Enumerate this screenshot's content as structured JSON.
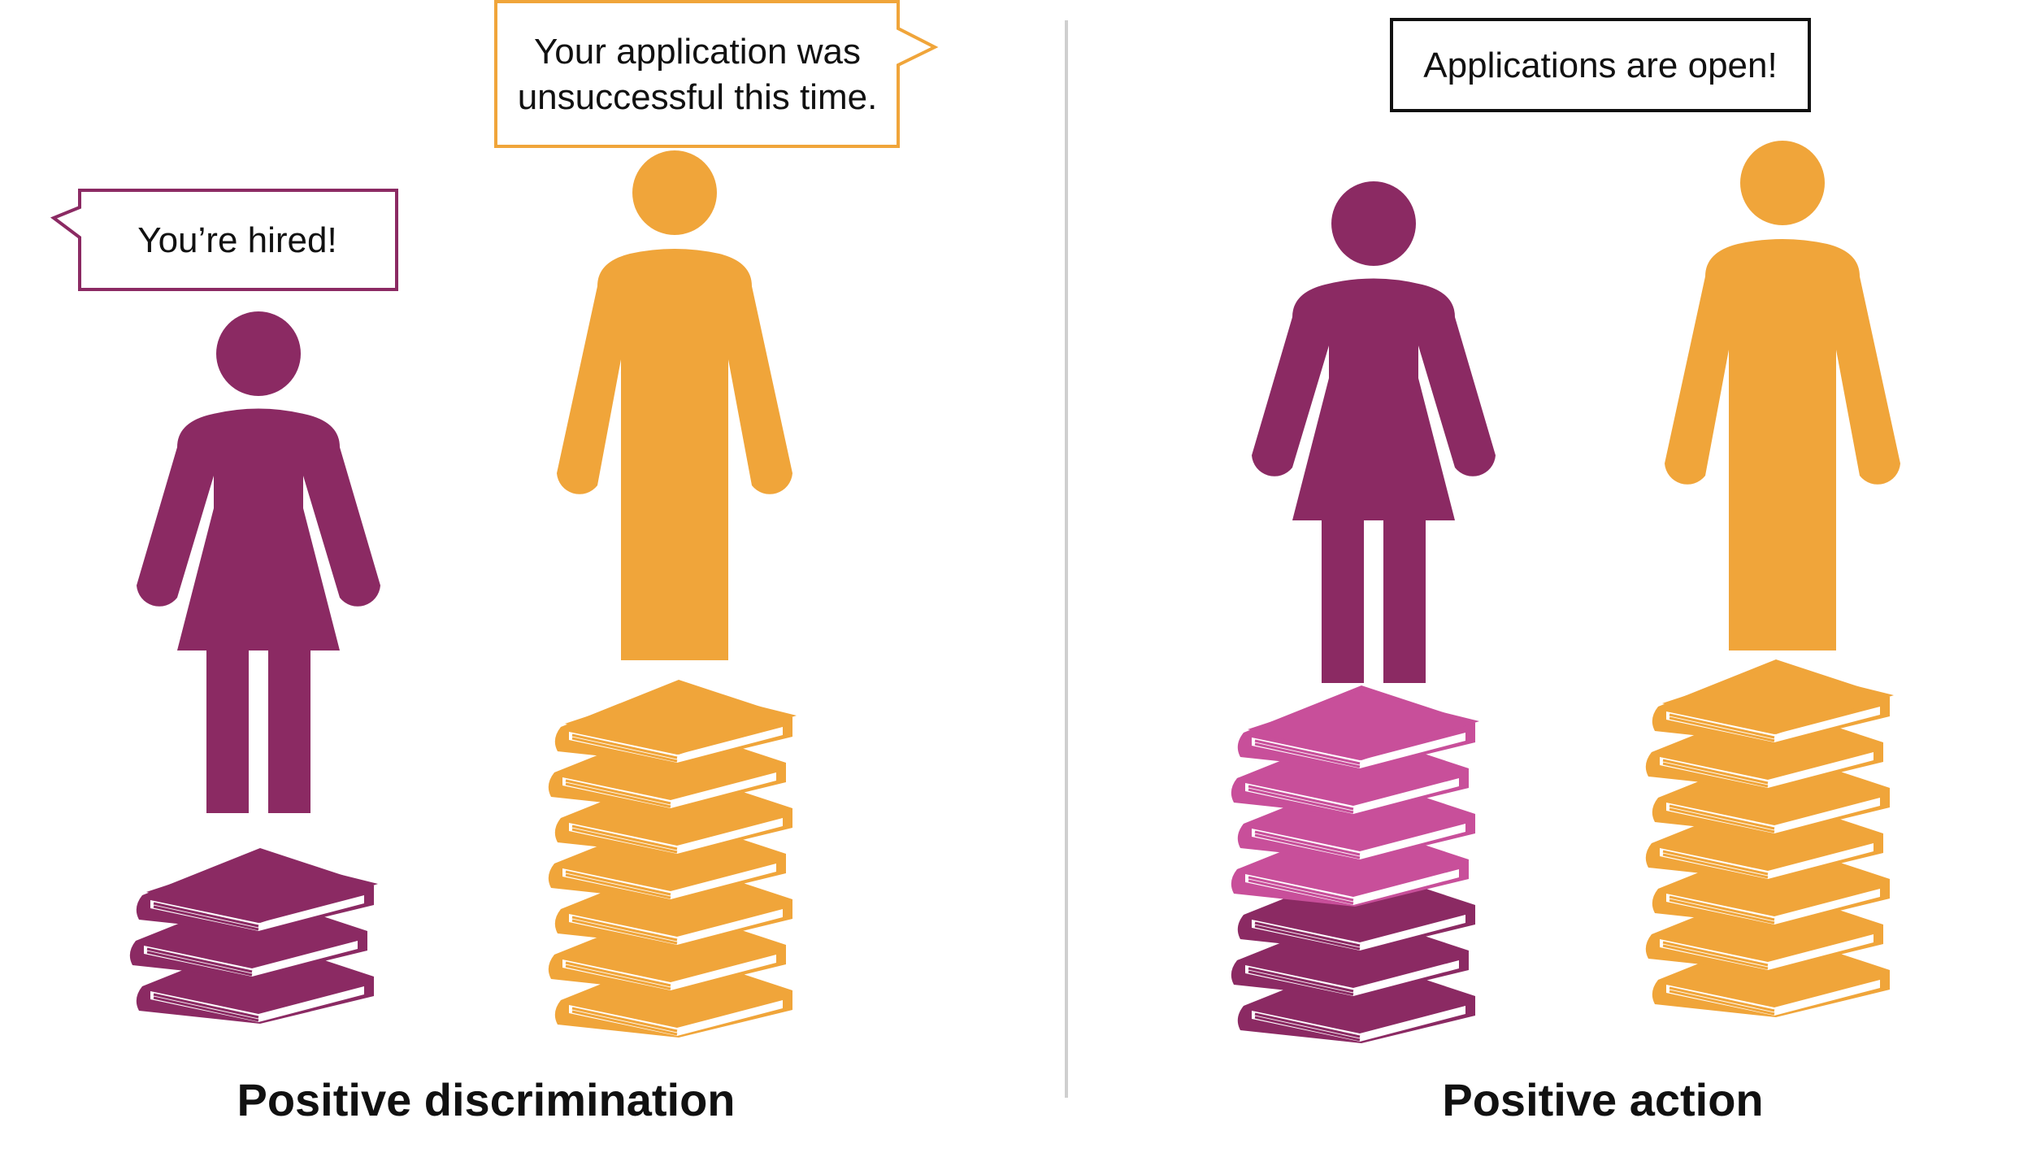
{
  "colors": {
    "purple": "#8b2a63",
    "orange": "#f0a53a",
    "pink": "#c84f9a",
    "divider": "#cfcfcf",
    "text": "#111111",
    "book_page": "#ffffff"
  },
  "left_panel": {
    "caption": "Positive discrimination",
    "woman_bubble": "You’re hired!",
    "man_bubble_line1": "Your application was",
    "man_bubble_line2": "unsuccessful this time.",
    "woman_books": 3,
    "man_books": 7
  },
  "right_panel": {
    "caption": "Positive action",
    "notice": "Applications are open!",
    "woman_books": 7,
    "woman_books_boosted": 4,
    "man_books": 7
  },
  "icons": {
    "woman": "woman-figure-icon",
    "man": "man-figure-icon",
    "book": "book-icon"
  }
}
